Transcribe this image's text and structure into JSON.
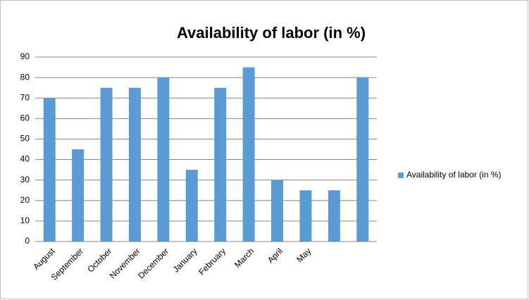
{
  "chart_data": {
    "type": "bar",
    "title": "Availability of labor (in %)",
    "categories": [
      "August",
      "September",
      "October",
      "November",
      "December",
      "January",
      "February",
      "March",
      "April",
      "May",
      null,
      null
    ],
    "series": [
      {
        "name": "Availability of labor (in %)",
        "color": "#5b9bd5",
        "values": [
          70,
          45,
          75,
          75,
          80,
          35,
          75,
          85,
          30,
          25,
          25,
          80
        ]
      }
    ],
    "ylim": [
      0,
      90
    ],
    "yticks": [
      0,
      10,
      20,
      30,
      40,
      50,
      60,
      70,
      80,
      90
    ],
    "grid": true,
    "legend": "right"
  }
}
